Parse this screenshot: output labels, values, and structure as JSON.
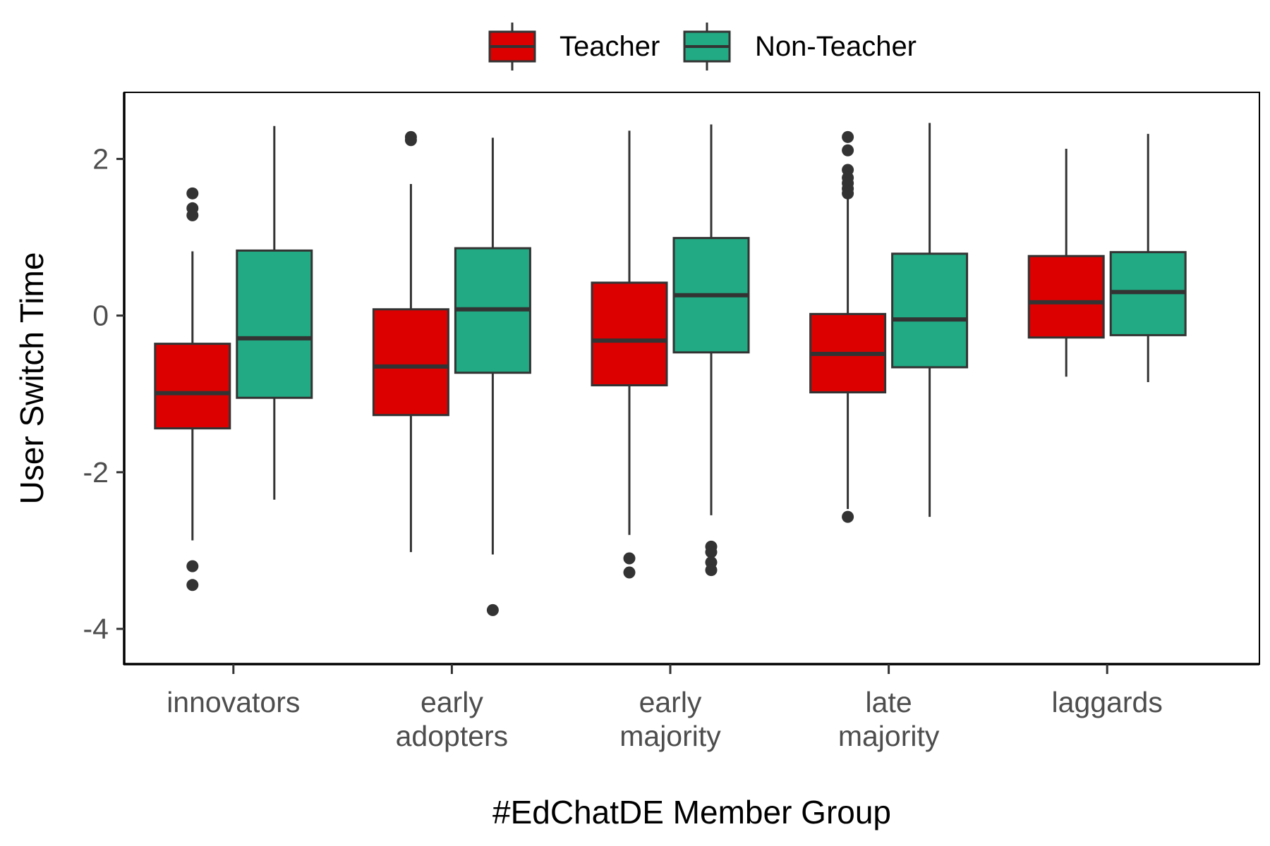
{
  "chart_data": {
    "type": "box",
    "title": "",
    "xlabel": "#EdChatDE Member Group",
    "ylabel": "User Switch Time",
    "ylim": [
      -4.45,
      2.85
    ],
    "yticks": [
      2,
      0,
      -2,
      -4
    ],
    "ytick_labels": [
      "2",
      "0",
      "-2",
      "-4"
    ],
    "categories": [
      [
        "innovators"
      ],
      [
        "early",
        "adopters"
      ],
      [
        "early",
        "majority"
      ],
      [
        "late",
        "majority"
      ],
      [
        "laggards"
      ]
    ],
    "legend": {
      "placement": "top",
      "entries": [
        "Teacher",
        "Non-Teacher"
      ]
    },
    "grid": false,
    "series": [
      {
        "name": "Teacher",
        "color": "#dd0000",
        "boxes": [
          {
            "whisker_low": -2.87,
            "q1": -1.44,
            "median": -0.99,
            "q3": -0.36,
            "whisker_high": 0.82,
            "outliers": [
              1.56,
              1.37,
              1.28,
              -3.2,
              -3.44
            ]
          },
          {
            "whisker_low": -3.02,
            "q1": -1.27,
            "median": -0.65,
            "q3": 0.08,
            "whisker_high": 1.68,
            "outliers": [
              2.28,
              2.24
            ]
          },
          {
            "whisker_low": -2.8,
            "q1": -0.89,
            "median": -0.32,
            "q3": 0.42,
            "whisker_high": 2.36,
            "outliers": [
              -3.1,
              -3.28
            ]
          },
          {
            "whisker_low": -2.47,
            "q1": -0.98,
            "median": -0.49,
            "q3": 0.02,
            "whisker_high": 1.5,
            "outliers": [
              2.28,
              2.11,
              1.86,
              1.76,
              1.69,
              1.62,
              1.56,
              -2.57
            ]
          },
          {
            "whisker_low": -0.78,
            "q1": -0.28,
            "median": 0.17,
            "q3": 0.76,
            "whisker_high": 2.13,
            "outliers": []
          }
        ]
      },
      {
        "name": "Non-Teacher",
        "color": "#21aa83",
        "boxes": [
          {
            "whisker_low": -2.35,
            "q1": -1.05,
            "median": -0.29,
            "q3": 0.83,
            "whisker_high": 2.42,
            "outliers": []
          },
          {
            "whisker_low": -3.05,
            "q1": -0.73,
            "median": 0.08,
            "q3": 0.86,
            "whisker_high": 2.27,
            "outliers": [
              -3.76
            ]
          },
          {
            "whisker_low": -2.55,
            "q1": -0.47,
            "median": 0.26,
            "q3": 0.99,
            "whisker_high": 2.44,
            "outliers": [
              -2.95,
              -3.02,
              -3.15,
              -3.25
            ]
          },
          {
            "whisker_low": -2.57,
            "q1": -0.66,
            "median": -0.05,
            "q3": 0.79,
            "whisker_high": 2.46,
            "outliers": []
          },
          {
            "whisker_low": -0.85,
            "q1": -0.25,
            "median": 0.3,
            "q3": 0.81,
            "whisker_high": 2.32,
            "outliers": []
          }
        ]
      }
    ]
  }
}
